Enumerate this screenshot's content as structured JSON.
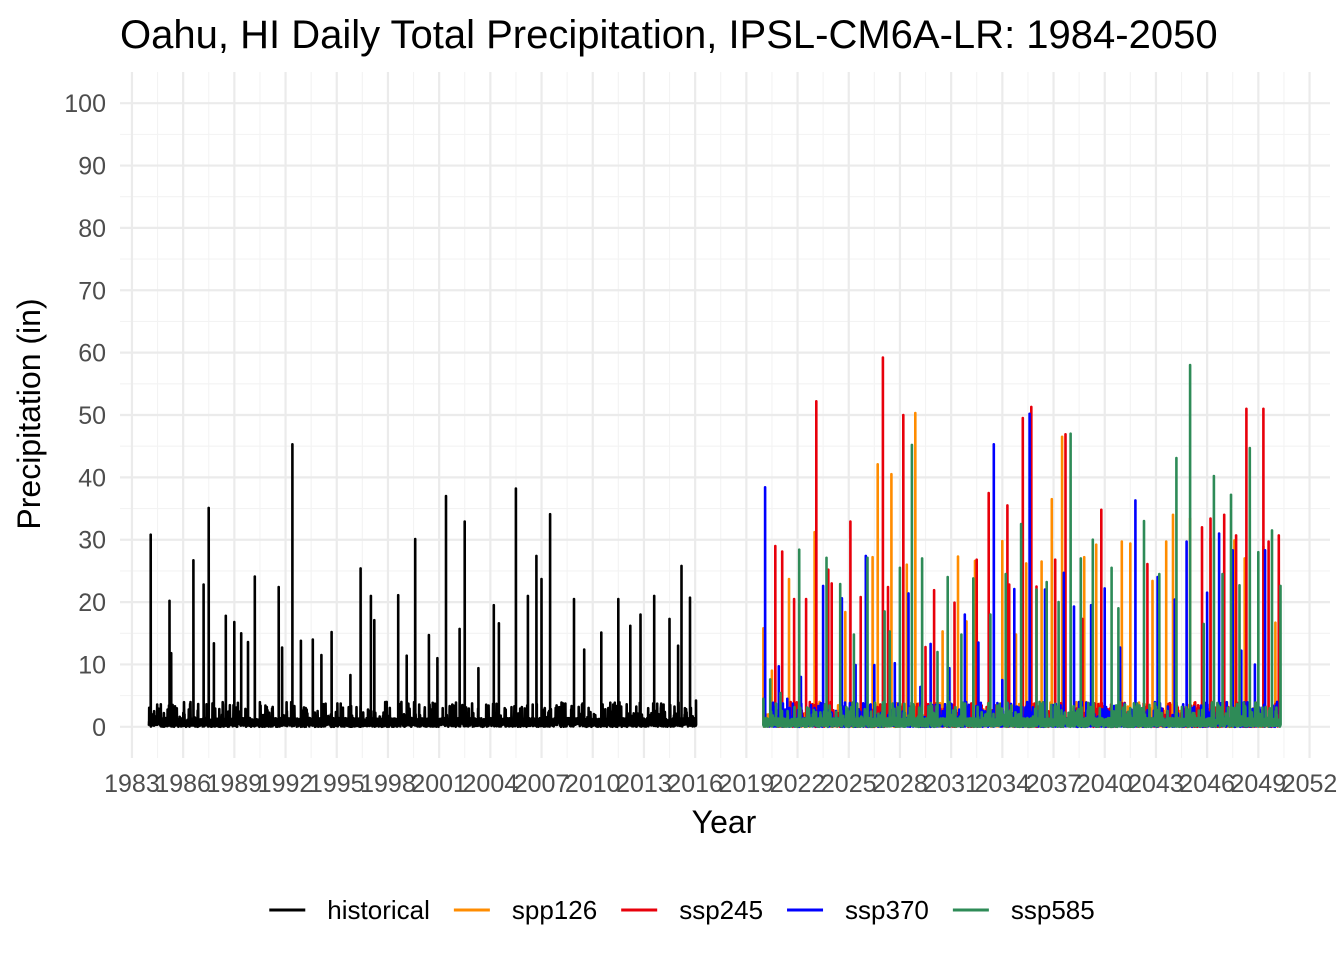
{
  "chart_data": {
    "type": "line",
    "title": "Oahu, HI Daily Total Precipitation, IPSL-CM6A-LR: 1984-2050",
    "xlabel": "Year",
    "ylabel": "Precipitation (in)",
    "xlim": [
      1982.3,
      2053.2
    ],
    "ylim": [
      -5,
      105
    ],
    "x_ticks": [
      1983,
      1986,
      1989,
      1992,
      1995,
      1998,
      2001,
      2004,
      2007,
      2010,
      2013,
      2016,
      2019,
      2022,
      2025,
      2028,
      2031,
      2034,
      2037,
      2040,
      2043,
      2046,
      2049,
      2052
    ],
    "x_tick_labels": [
      "1983",
      "1986",
      "1989",
      "1992",
      "1995",
      "1998",
      "2001",
      "2004",
      "2007",
      "2010",
      "2013",
      "2016",
      "2019",
      "2022",
      "2025",
      "2028",
      "2031",
      "2034",
      "2037",
      "2040",
      "2043",
      "2046",
      "2049",
      "2052"
    ],
    "y_ticks": [
      0,
      10,
      20,
      30,
      40,
      50,
      60,
      70,
      80,
      90,
      100
    ],
    "y_tick_labels": [
      "0",
      "10",
      "20",
      "30",
      "40",
      "50",
      "60",
      "70",
      "80",
      "90",
      "100"
    ],
    "grid": true,
    "legend_position": "bottom",
    "series": [
      {
        "name": "historical",
        "color": "#000000",
        "x": [
          1984.0,
          1984.1,
          1984.15,
          1984.3,
          1985.2,
          1985.3,
          1985.8,
          1986.3,
          1986.6,
          1987.2,
          1987.5,
          1987.8,
          1988.5,
          1989.0,
          1989.4,
          1989.8,
          1990.2,
          1990.7,
          1991.6,
          1991.8,
          1992.4,
          1992.9,
          1993.6,
          1994.1,
          1994.7,
          1995.8,
          1996.4,
          1997.0,
          1997.2,
          1998.6,
          1999.1,
          1999.6,
          2000.4,
          2000.9,
          2001.4,
          2002.2,
          2002.5,
          2003.3,
          2004.2,
          2004.5,
          2005.5,
          2006.2,
          2006.7,
          2007.0,
          2007.5,
          2008.9,
          2009.5,
          2010.5,
          2011.5,
          2012.2,
          2012.8,
          2013.6,
          2014.5,
          2015.0,
          2015.2,
          2015.7,
          2016.05
        ],
        "y": [
          0.8,
          30.8,
          0.7,
          2.5,
          20.2,
          11.8,
          1.6,
          0.9,
          26.7,
          22.8,
          35.1,
          13.4,
          17.8,
          16.8,
          15.0,
          13.6,
          24.1,
          1.9,
          22.4,
          12.7,
          45.3,
          13.8,
          14.0,
          11.5,
          15.2,
          8.3,
          25.4,
          21.0,
          17.1,
          21.1,
          11.4,
          30.1,
          14.7,
          11.0,
          37.0,
          15.7,
          32.9,
          9.4,
          19.5,
          16.6,
          38.2,
          21.0,
          27.4,
          23.7,
          34.1,
          20.5,
          12.4,
          15.1,
          20.5,
          16.2,
          18.0,
          21.0,
          17.3,
          13.0,
          25.8,
          20.7,
          4.2
        ]
      },
      {
        "name": "spp126",
        "color": "#ff8c00",
        "x": [
          2020.0,
          2020.5,
          2021.5,
          2023.0,
          2024.8,
          2026.4,
          2026.7,
          2027.5,
          2028.4,
          2028.9,
          2030.5,
          2031.4,
          2031.9,
          2032.4,
          2034.0,
          2034.8,
          2035.4,
          2036.3,
          2036.9,
          2037.5,
          2038.8,
          2039.5,
          2041.0,
          2041.5,
          2042.8,
          2043.6,
          2044.0,
          2045.0,
          2046.2,
          2047.6,
          2048.2,
          2049.3,
          2050.0
        ],
        "y": [
          15.8,
          9.0,
          23.7,
          31.2,
          18.4,
          27.2,
          42.1,
          40.5,
          26.0,
          50.3,
          15.3,
          27.3,
          16.9,
          26.6,
          29.8,
          14.8,
          26.2,
          26.5,
          36.5,
          46.5,
          27.2,
          29.2,
          29.7,
          29.4,
          23.4,
          29.7,
          34.0,
          33.4,
          30.2,
          29.9,
          27.0,
          28.9,
          16.7
        ]
      },
      {
        "name": "ssp245",
        "color": "#e8000b",
        "x": [
          2020.7,
          2021.1,
          2021.8,
          2022.5,
          2023.1,
          2023.8,
          2024.0,
          2025.1,
          2025.7,
          2027.0,
          2027.3,
          2028.2,
          2029.5,
          2030.0,
          2031.2,
          2032.5,
          2033.2,
          2034.3,
          2034.4,
          2035.2,
          2035.7,
          2036.0,
          2037.1,
          2037.7,
          2038.7,
          2039.8,
          2042.5,
          2045.7,
          2046.2,
          2047.0,
          2047.7,
          2048.3,
          2049.3,
          2049.6,
          2050.2
        ],
        "y": [
          29.0,
          28.1,
          20.5,
          20.5,
          52.2,
          25.2,
          23.0,
          32.9,
          20.8,
          59.2,
          22.4,
          50.0,
          12.8,
          21.9,
          19.9,
          26.8,
          37.5,
          35.5,
          22.8,
          49.5,
          51.3,
          22.5,
          26.8,
          46.9,
          17.3,
          34.8,
          26.1,
          32.0,
          33.4,
          34.0,
          30.7,
          51.0,
          51.0,
          29.7,
          30.7
        ]
      },
      {
        "name": "ssp370",
        "color": "#0000ff",
        "x": [
          2020.1,
          2020.9,
          2021.4,
          2022.2,
          2023.5,
          2024.6,
          2025.4,
          2026.0,
          2026.5,
          2027.7,
          2028.5,
          2029.2,
          2029.8,
          2030.9,
          2031.8,
          2032.6,
          2033.5,
          2034.0,
          2034.7,
          2035.6,
          2036.5,
          2037.6,
          2038.2,
          2039.2,
          2040.0,
          2040.9,
          2041.8,
          2043.1,
          2044.1,
          2044.8,
          2046.0,
          2046.7,
          2047.5,
          2048.0,
          2048.8,
          2049.4,
          2050.1
        ],
        "y": [
          38.4,
          9.7,
          4.5,
          8.0,
          22.6,
          20.6,
          9.9,
          27.4,
          9.9,
          10.2,
          21.4,
          6.4,
          13.3,
          9.4,
          18.0,
          13.5,
          45.3,
          7.5,
          22.1,
          50.2,
          22.0,
          24.7,
          19.3,
          19.5,
          22.2,
          12.7,
          36.3,
          24.0,
          20.4,
          29.7,
          21.5,
          31.0,
          28.3,
          12.2,
          10.0,
          28.3,
          4.0
        ]
      },
      {
        "name": "ssp585",
        "color": "#2e8b57",
        "x": [
          2020.0,
          2020.4,
          2021.0,
          2022.1,
          2022.9,
          2023.7,
          2024.5,
          2025.3,
          2026.1,
          2027.1,
          2027.4,
          2028.0,
          2028.7,
          2029.3,
          2030.2,
          2030.8,
          2031.6,
          2032.3,
          2033.3,
          2034.2,
          2035.1,
          2036.0,
          2036.6,
          2037.3,
          2038.0,
          2038.6,
          2039.3,
          2040.4,
          2040.8,
          2042.3,
          2043.2,
          2044.2,
          2045.0,
          2045.8,
          2046.4,
          2046.9,
          2047.4,
          2047.9,
          2048.5,
          2049.0,
          2049.8,
          2050.3
        ],
        "y": [
          4.5,
          7.6,
          5.4,
          28.4,
          2.0,
          27.1,
          22.9,
          14.8,
          27.1,
          18.5,
          15.3,
          25.5,
          45.2,
          27.0,
          12.0,
          24.0,
          14.8,
          23.8,
          18.0,
          24.5,
          32.5,
          22.0,
          23.2,
          20.0,
          47.0,
          27.0,
          30.0,
          25.5,
          19.0,
          33.0,
          24.5,
          43.1,
          58.0,
          16.5,
          40.2,
          24.5,
          37.2,
          22.7,
          44.7,
          28.0,
          31.5,
          22.6
        ]
      }
    ]
  }
}
